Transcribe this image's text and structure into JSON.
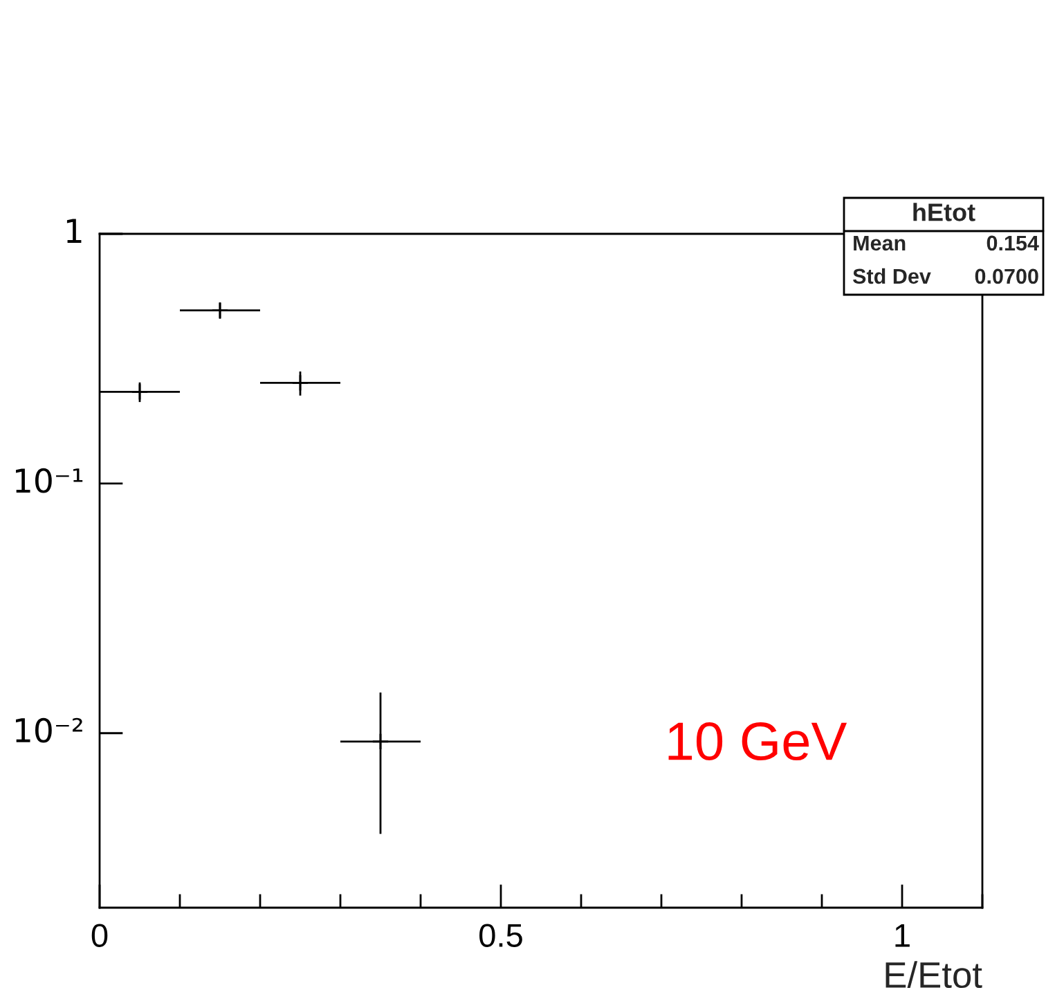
{
  "chart_data": {
    "type": "scatter",
    "xlabel": "E/Etot",
    "x": [
      0.05,
      0.15,
      0.25,
      0.35
    ],
    "series": [
      {
        "color": "#000000",
        "values": [
          0.233,
          0.494,
          0.253,
          0.00925
        ],
        "errors": [
          0.021,
          0.037,
          0.028,
          0.0053
        ],
        "xerrors": [
          0.05,
          0.05,
          0.05,
          0.05
        ]
      }
    ],
    "xlim": [
      0,
      1.1
    ],
    "xticks": [
      0,
      0.5,
      1
    ],
    "ylim": [
      0.002,
      1
    ],
    "yticks": [
      {
        "value": 1,
        "label": "1"
      },
      {
        "value": 0.1,
        "label": "10⁻¹"
      },
      {
        "value": 0.01,
        "label": "10⁻²"
      }
    ],
    "log": "y",
    "grid": false,
    "marker": "cross",
    "annotations": [
      "hEtot",
      "Mean",
      "0.154",
      "Std Dev",
      "0.0700",
      "10 GeV"
    ]
  }
}
